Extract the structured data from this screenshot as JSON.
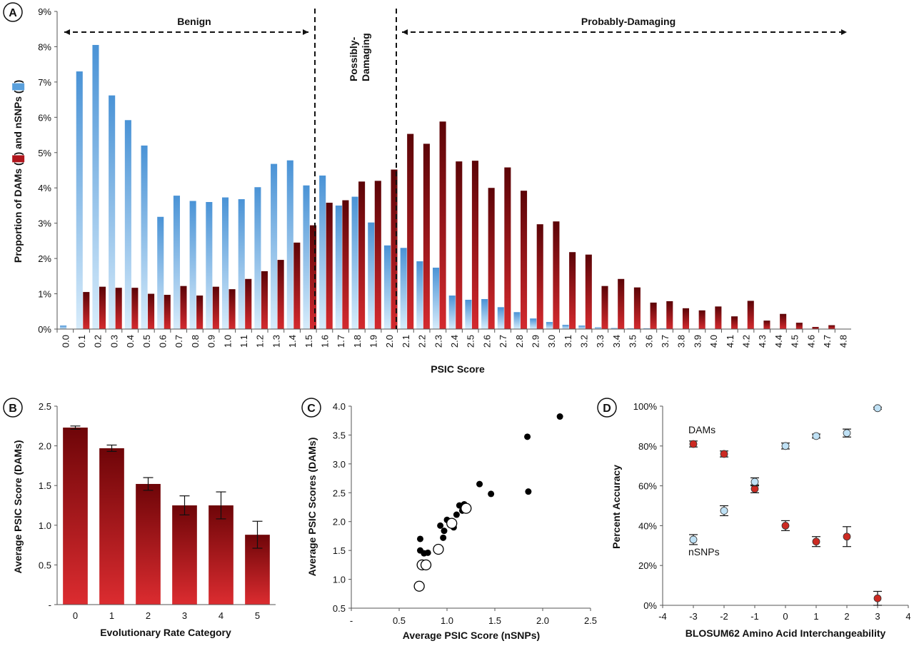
{
  "panels": {
    "a": "A",
    "b": "B",
    "c": "C",
    "d": "D"
  },
  "chart_data": [
    {
      "type": "bar",
      "panel": "A",
      "xlabel": "PSIC Score",
      "ylabel": "Proportion of DAMs (█) and nSNPs (█)",
      "ylim": [
        0,
        9
      ],
      "yticks": [
        "0%",
        "1%",
        "2%",
        "3%",
        "4%",
        "5%",
        "6%",
        "7%",
        "8%",
        "9%"
      ],
      "categories": [
        "0.0",
        "0.1",
        "0.2",
        "0.3",
        "0.4",
        "0.5",
        "0.6",
        "0.7",
        "0.8",
        "0.9",
        "1.0",
        "1.1",
        "1.2",
        "1.3",
        "1.4",
        "1.5",
        "1.6",
        "1.7",
        "1.8",
        "1.9",
        "2.0",
        "2.1",
        "2.2",
        "2.3",
        "2.4",
        "2.5",
        "2.6",
        "2.7",
        "2.8",
        "2.9",
        "3.0",
        "3.1",
        "3.2",
        "3.3",
        "3.4",
        "3.5",
        "3.6",
        "3.7",
        "3.8",
        "3.9",
        "4.0",
        "4.1",
        "4.2",
        "4.3",
        "4.4",
        "4.5",
        "4.6",
        "4.7",
        "4.8"
      ],
      "series": [
        {
          "color": "#5aa0dc",
          "values": [
            0.1,
            7.3,
            8.05,
            6.62,
            5.92,
            5.2,
            3.18,
            3.78,
            3.63,
            3.6,
            3.73,
            3.68,
            4.02,
            4.68,
            4.78,
            4.07,
            4.35,
            3.5,
            3.75,
            3.02,
            2.37,
            2.3,
            1.92,
            1.74,
            0.95,
            0.83,
            0.85,
            0.62,
            0.48,
            0.3,
            0.2,
            0.12,
            0.1,
            0.05,
            0.03,
            0.02,
            0.02,
            0.02,
            0.01,
            0.01,
            0.01,
            0,
            0,
            0,
            0,
            0,
            0,
            0,
            0
          ]
        },
        {
          "color": "#b0151c",
          "values": [
            0,
            1.05,
            1.2,
            1.17,
            1.17,
            1.0,
            0.97,
            1.22,
            0.95,
            1.2,
            1.13,
            1.42,
            1.64,
            1.96,
            2.45,
            2.94,
            3.58,
            3.65,
            4.18,
            4.2,
            4.52,
            5.53,
            5.25,
            5.88,
            4.75,
            4.77,
            4.0,
            4.58,
            3.92,
            2.97,
            3.05,
            2.18,
            2.11,
            1.22,
            1.42,
            1.18,
            0.75,
            0.79,
            0.59,
            0.53,
            0.64,
            0.36,
            0.8,
            0.24,
            0.43,
            0.18,
            0.06,
            0.11,
            0.01
          ]
        }
      ],
      "regions": [
        {
          "label": "Benign"
        },
        {
          "label": "Possibly-Damaging"
        },
        {
          "label": "Probably-Damaging"
        }
      ]
    },
    {
      "type": "bar",
      "panel": "B",
      "xlabel": "Evolutionary Rate Category",
      "ylabel": "Average PSIC Score (DAMs)",
      "ylim": [
        0,
        2.5
      ],
      "yticks": [
        "-",
        "0.5",
        "1.0",
        "1.5",
        "2.0",
        "2.5"
      ],
      "categories": [
        "0",
        "1",
        "2",
        "3",
        "4",
        "5"
      ],
      "values": [
        2.23,
        1.97,
        1.52,
        1.25,
        1.25,
        0.88
      ],
      "errors": [
        0.02,
        0.04,
        0.08,
        0.12,
        0.17,
        0.17
      ],
      "color": "#a0141b"
    },
    {
      "type": "scatter",
      "panel": "C",
      "xlabel": "Average PSIC Score (nSNPs)",
      "ylabel": "Average PSIC Scores (DAMs)",
      "xlim": [
        0,
        2.5
      ],
      "ylim": [
        0.5,
        4.0
      ],
      "xticks": [
        "-",
        "0.5",
        "1.0",
        "1.5",
        "2.0",
        "2.5"
      ],
      "yticks": [
        "0.5",
        "1.0",
        "1.5",
        "2.0",
        "2.5",
        "3.0",
        "3.5",
        "4.0"
      ],
      "filled_points": [
        [
          0.72,
          1.7
        ],
        [
          0.72,
          1.5
        ],
        [
          0.76,
          1.45
        ],
        [
          0.8,
          1.46
        ],
        [
          0.93,
          1.93
        ],
        [
          0.96,
          1.72
        ],
        [
          0.97,
          1.84
        ],
        [
          1.0,
          2.03
        ],
        [
          1.03,
          1.95
        ],
        [
          1.07,
          1.9
        ],
        [
          1.1,
          2.12
        ],
        [
          1.13,
          2.28
        ],
        [
          1.16,
          2.19
        ],
        [
          1.18,
          2.3
        ],
        [
          1.34,
          2.65
        ],
        [
          1.46,
          2.48
        ],
        [
          1.84,
          3.47
        ],
        [
          1.85,
          2.52
        ],
        [
          2.18,
          3.82
        ]
      ],
      "open_points": [
        [
          0.71,
          0.88
        ],
        [
          0.74,
          1.25
        ],
        [
          0.78,
          1.25
        ],
        [
          0.91,
          1.52
        ],
        [
          1.05,
          1.97
        ],
        [
          1.2,
          2.23
        ]
      ]
    },
    {
      "type": "scatter",
      "panel": "D",
      "xlabel": "BLOSUM62 Amino Acid Interchangeability",
      "ylabel": "Percent Accuracy",
      "xlim": [
        -4,
        4
      ],
      "ylim": [
        0,
        100
      ],
      "xticks": [
        "-4",
        "-3",
        "-2",
        "-1",
        "0",
        "1",
        "2",
        "3",
        "4"
      ],
      "yticks": [
        "0%",
        "20%",
        "40%",
        "60%",
        "80%",
        "100%"
      ],
      "series": [
        {
          "name": "DAMs",
          "color": "#cc2a22",
          "points": [
            [
              -3,
              81
            ],
            [
              -2,
              76
            ],
            [
              -1,
              58.5
            ],
            [
              0,
              40
            ],
            [
              1,
              32
            ],
            [
              2,
              34.5
            ],
            [
              3,
              3.5
            ]
          ],
          "errors": [
            1.5,
            1.5,
            2,
            2.5,
            2.5,
            5,
            3.5
          ]
        },
        {
          "name": "nSNPs",
          "color": "#bfe1f5",
          "points": [
            [
              -3,
              33
            ],
            [
              -2,
              47.5
            ],
            [
              -1,
              62
            ],
            [
              0,
              80
            ],
            [
              1,
              85
            ],
            [
              2,
              86.5
            ],
            [
              3,
              99
            ]
          ],
          "errors": [
            2.5,
            2.5,
            2,
            1.5,
            1,
            2,
            0.5
          ]
        }
      ]
    }
  ]
}
